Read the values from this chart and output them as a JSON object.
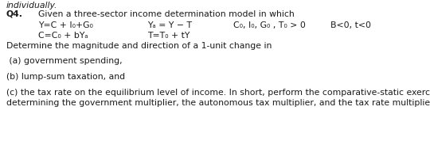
{
  "background_color": "#ffffff",
  "text_color": "#1a1a1a",
  "q_label": "Q4.",
  "line1": "Given a three-sector income determination model in which",
  "row1_col1": "Y=C + I₀+G₀",
  "row1_col2": "Yₐ = Y − T",
  "row1_col3": "C₀, I₀, G₀ , T₀ > 0",
  "row1_col4": "B<0, t<0",
  "row2_col1": "C=C₀ + bYₐ",
  "row2_col2": "T=T₀ + tY",
  "line_determine": "Determine the magnitude and direction of a 1-unit change in",
  "item_a": " (a) government spending,",
  "item_b": "(b) lump-sum taxation, and",
  "item_c": "(c) the tax rate on the equilibrium level of income. In short, perform the comparative-static exercise of",
  "item_c2": "determining the government multiplier, the autonomous tax multiplier, and the tax rate multiplier.",
  "fontsize": 7.8,
  "fontfamily": "DejaVu Sans"
}
